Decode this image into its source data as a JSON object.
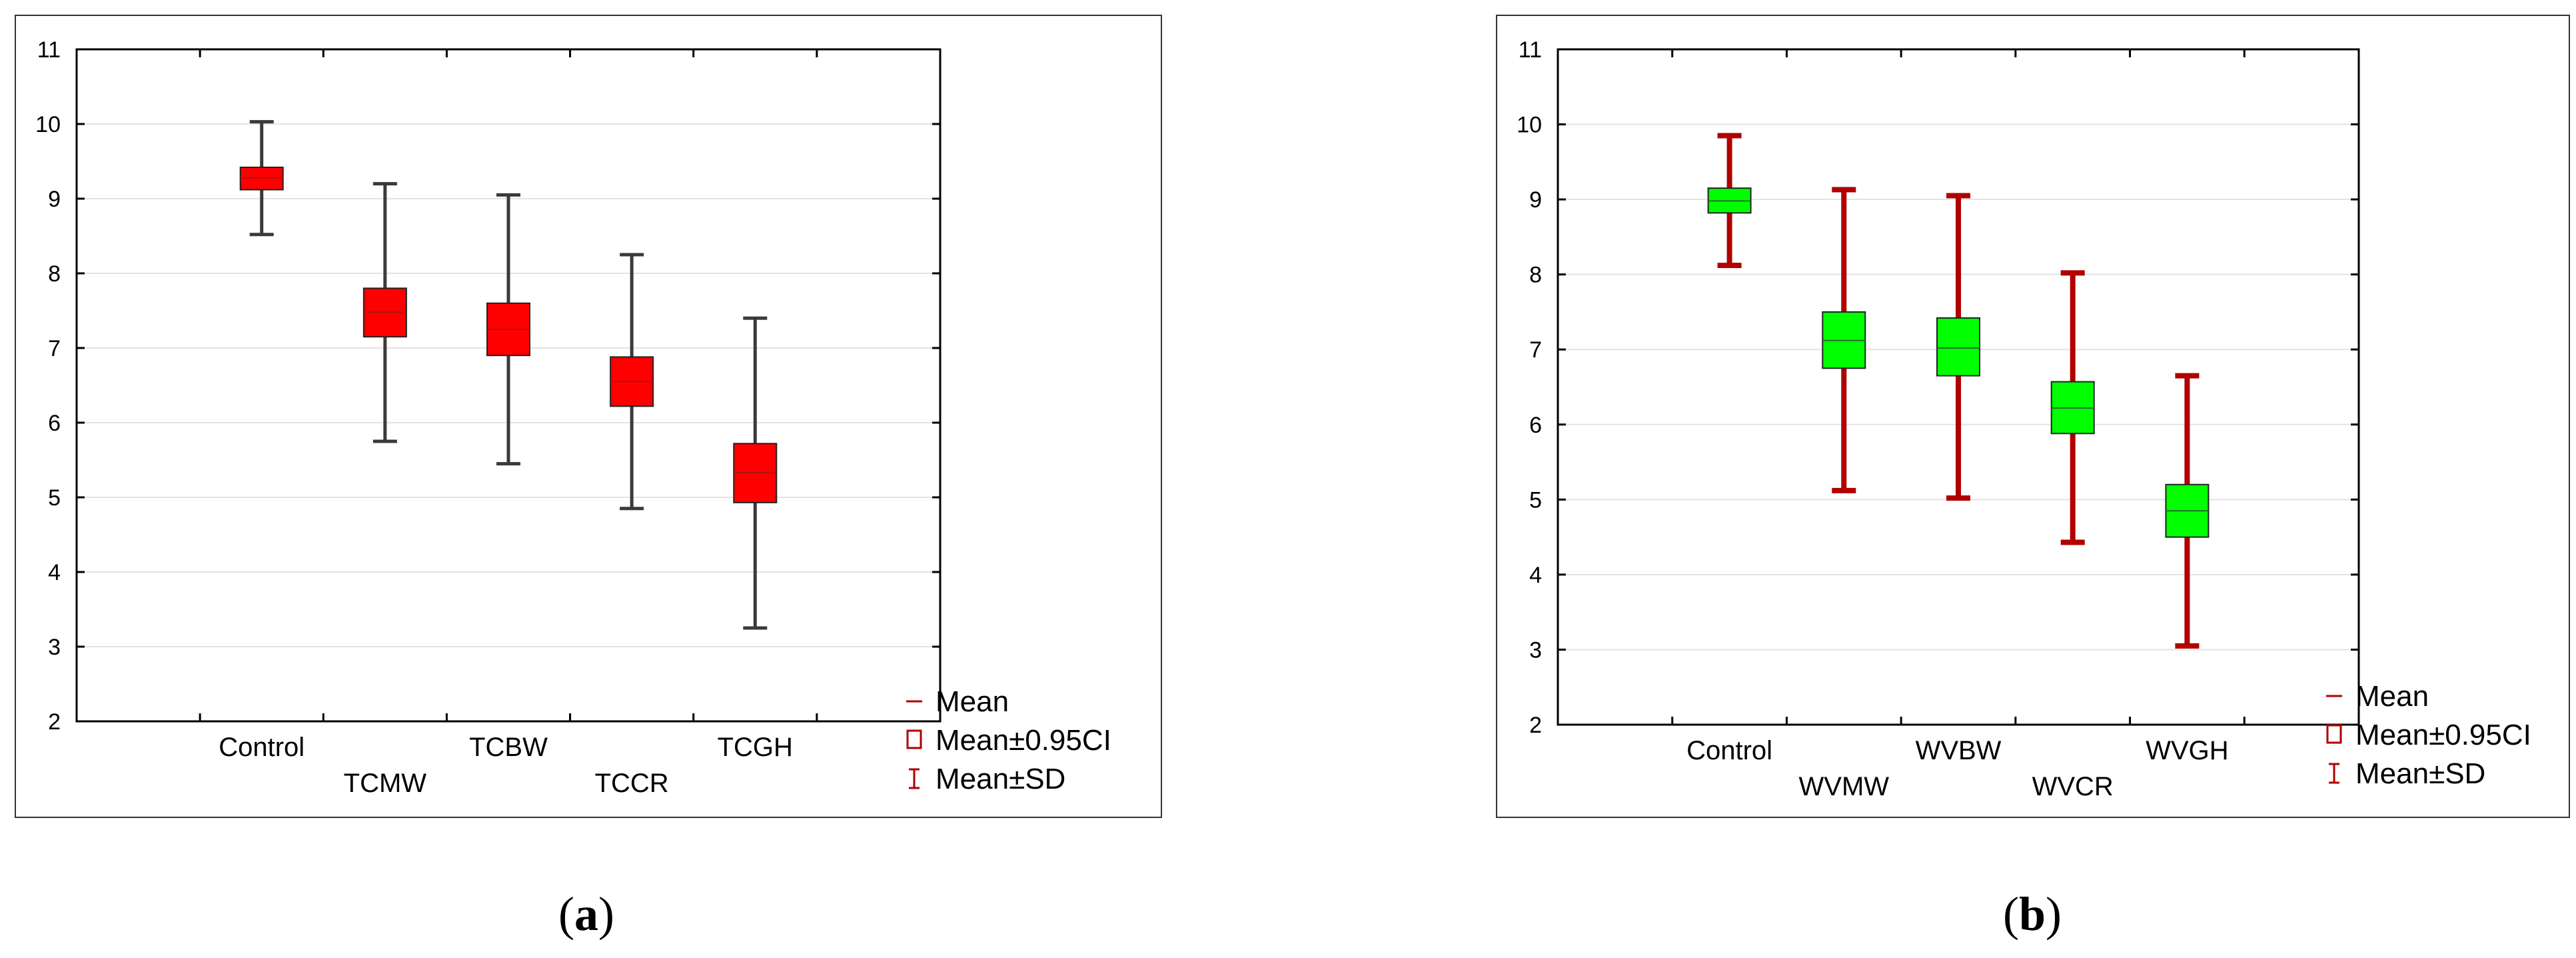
{
  "colors": {
    "frame": "#333333",
    "axis": "#000000",
    "grid": "#e3e3e3",
    "panel_a_box": "#ff0000",
    "panel_a_whisker": "#3a3a3a",
    "panel_a_mean": "#b01010",
    "panel_b_box": "#00ff00",
    "panel_b_whisker": "#b00000",
    "panel_b_mean": "#2a6a2a",
    "legend_mark": "#b00000"
  },
  "captions": {
    "a": "a",
    "b": "b"
  },
  "chart_data": [
    {
      "type": "box",
      "panel": "a",
      "categories": [
        "Control",
        "TCMW",
        "TCBW",
        "TCCR",
        "TCGH"
      ],
      "mean": [
        9.28,
        7.48,
        7.25,
        6.55,
        5.33
      ],
      "ci_low": [
        9.12,
        7.15,
        6.9,
        6.22,
        4.93
      ],
      "ci_high": [
        9.42,
        7.8,
        7.6,
        6.88,
        5.72
      ],
      "sd_low": [
        8.52,
        5.75,
        5.45,
        4.85,
        3.25
      ],
      "sd_high": [
        10.03,
        9.2,
        9.05,
        8.25,
        7.4
      ],
      "ylim": [
        2,
        11
      ],
      "yticks": [
        2,
        3,
        4,
        5,
        6,
        7,
        8,
        9,
        10,
        11
      ],
      "grid": true,
      "legend": {
        "position": "bottom-right",
        "items": [
          "Mean",
          "Mean±0.95CI",
          "Mean±SD"
        ]
      }
    },
    {
      "type": "box",
      "panel": "b",
      "categories": [
        "Control",
        "WVMW",
        "WVBW",
        "WVCR",
        "WVGH"
      ],
      "mean": [
        8.98,
        7.12,
        7.02,
        6.22,
        4.85
      ],
      "ci_low": [
        8.82,
        6.75,
        6.65,
        5.88,
        4.5
      ],
      "ci_high": [
        9.15,
        7.5,
        7.42,
        6.57,
        5.2
      ],
      "sd_low": [
        8.12,
        5.12,
        5.02,
        4.43,
        3.05
      ],
      "sd_high": [
        9.85,
        9.13,
        9.05,
        8.02,
        6.65
      ],
      "ylim": [
        2,
        11
      ],
      "yticks": [
        2,
        3,
        4,
        5,
        6,
        7,
        8,
        9,
        10,
        11
      ],
      "grid": true,
      "legend": {
        "position": "bottom-right",
        "items": [
          "Mean",
          "Mean±0.95CI",
          "Mean±SD"
        ]
      }
    }
  ]
}
